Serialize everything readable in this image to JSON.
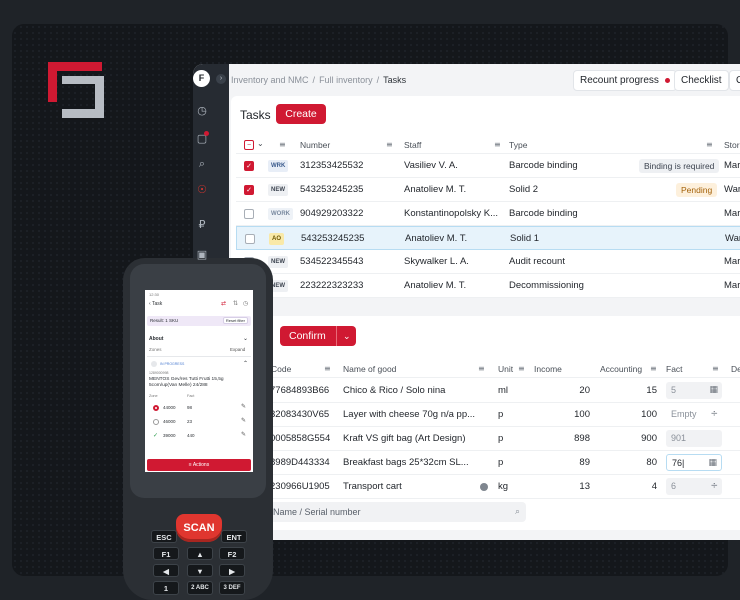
{
  "app": {
    "avatar_letter": "F",
    "breadcrumbs": [
      "Inventory and NMC",
      "Full inventory",
      "Tasks"
    ],
    "recount_label": "Recount progress",
    "checklist_label": "Checklist",
    "cut_label": "O"
  },
  "tasks": {
    "title": "Tasks",
    "create_label": "Create",
    "headers": {
      "number": "Number",
      "staff": "Staff",
      "type": "Type",
      "storage": "Stora"
    },
    "rows": [
      {
        "tag": "WRK",
        "number": "312353425532",
        "staff": "Vasiliev V. A.",
        "type": "Barcode binding",
        "status": "Binding is required",
        "storage": "Mar",
        "checked": true
      },
      {
        "tag": "NEW",
        "number": "543253245235",
        "staff": "Anatoliev M. T.",
        "type": "Solid 2",
        "status": "Pending",
        "storage": "War",
        "checked": true
      },
      {
        "tag": "WORK",
        "number": "904929203322",
        "staff": "Konstantinopolsky K...",
        "type": "Barcode binding",
        "status": "",
        "storage": "Mar",
        "checked": false
      },
      {
        "tag": "AO",
        "number": "543253245235",
        "staff": "Anatoliev M. T.",
        "type": "Solid 1",
        "status": "",
        "storage": "War",
        "checked": false
      },
      {
        "tag": "NEW",
        "number": "534522345543",
        "staff": "Skywalker L. A.",
        "type": "Audit recount",
        "status": "",
        "storage": "Mar",
        "checked": false
      },
      {
        "tag": "NEW",
        "number": "223222323233",
        "staff": "Anatoliev M. T.",
        "type": "Decommissioning",
        "status": "",
        "storage": "Mar",
        "checked": false
      }
    ]
  },
  "goods": {
    "confirm_label": "Confirm",
    "headers": {
      "code": "Code",
      "name": "Name of good",
      "unit": "Unit",
      "income": "Income",
      "accounting": "Accounting",
      "fact": "Fact",
      "de": "De"
    },
    "rows": [
      {
        "code": "77684893B66",
        "name": "Chico & Rico / Solo nina",
        "unit": "ml",
        "income": "20",
        "accounting": "15",
        "fact": "5"
      },
      {
        "code": "32083430V65",
        "name": "Layer with cheese 70g n/a pp...",
        "unit": "p",
        "income": "100",
        "accounting": "100",
        "fact": "Empty"
      },
      {
        "code": "0005858G554",
        "name": "Kraft VS gift bag (Art Design)",
        "unit": "p",
        "income": "898",
        "accounting": "900",
        "fact": "901"
      },
      {
        "code": "8989D443334",
        "name": "Breakfast bags 25*32cm SL...",
        "unit": "p",
        "income": "89",
        "accounting": "80",
        "fact": "76"
      },
      {
        "code": "230966U1905",
        "name": "Transport cart",
        "unit": "kg",
        "income": "13",
        "accounting": "4",
        "fact": "6"
      }
    ],
    "search_placeholder": "/ Name / Serial number"
  },
  "scanner": {
    "back_label": "Task",
    "result_label": "Result: 1 SKU",
    "reset_label": "Reset filter",
    "about_label": "About",
    "zones_label": "Zones",
    "expand_label": "Expand",
    "item_badge": "IN PROGRESS",
    "item_code": "1289000998",
    "item_name": "MENTOS Gev/res Tutti Frutti 15,5g 5com/up(Van Melle) 24/288",
    "zone_header": "Zone",
    "fact_header": "Fact",
    "zones": [
      {
        "zone": "44000",
        "fact": "98"
      },
      {
        "zone": "46000",
        "fact": "23"
      },
      {
        "zone": "39000",
        "fact": "440"
      }
    ],
    "actions_label": "Actions",
    "scan_label": "SCAN",
    "keys": [
      "ESC",
      "ENT",
      "F1",
      "F2",
      "1",
      "2 ABC",
      "3 DEF"
    ]
  }
}
